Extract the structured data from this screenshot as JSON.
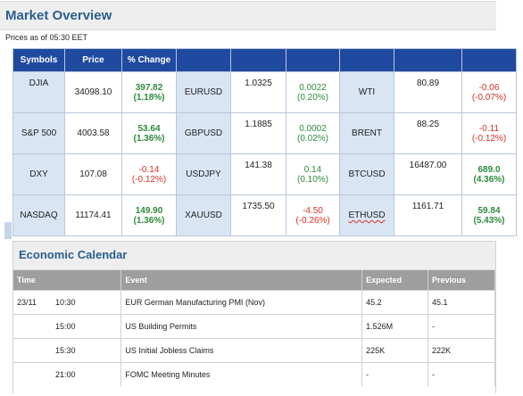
{
  "market_overview": {
    "title": "Market Overview",
    "as_of": "Prices as of 05:30 EET",
    "headers": [
      "Symbols",
      "Price",
      "% Change",
      "",
      "",
      "",
      "",
      "",
      ""
    ],
    "rows": [
      {
        "g1": {
          "symbol": "DJIA",
          "price": "34098.10",
          "change": "397.82",
          "pct": "(1.18%)"
        },
        "g2": {
          "symbol": "EURUSD",
          "price": "1.0325",
          "change": "0.0022",
          "pct": "(0.20%)"
        },
        "g3": {
          "symbol": "WTI",
          "price": "80.89",
          "change": "-0.06",
          "pct": "(-0.07%)"
        }
      },
      {
        "g1": {
          "symbol": "S&P 500",
          "price": "4003.58",
          "change": "53.64",
          "pct": "(1.36%)"
        },
        "g2": {
          "symbol": "GBPUSD",
          "price": "1.1885",
          "change": "0.0002",
          "pct": "(0.02%)"
        },
        "g3": {
          "symbol": "BRENT",
          "price": "88.25",
          "change": "-0.11",
          "pct": "(-0.12%)"
        }
      },
      {
        "g1": {
          "symbol": "DXY",
          "price": "107.08",
          "change": "-0.14",
          "pct": "(-0.12%)"
        },
        "g2": {
          "symbol": "USDJPY",
          "price": "141.38",
          "change": "0.14",
          "pct": "(0.10%)"
        },
        "g3": {
          "symbol": "BTCUSD",
          "price": "16487.00",
          "change": "689.0",
          "pct": "(4.36%)"
        }
      },
      {
        "g1": {
          "symbol": "NASDAQ",
          "price": "11174.41",
          "change": "149.90",
          "pct": "(1.36%)"
        },
        "g2": {
          "symbol": "XAUUSD",
          "price": "1735.50",
          "change": "-4.50",
          "pct": "(-0.26%)"
        },
        "g3": {
          "symbol": "ETHUSD",
          "price": "1161.71",
          "change": "59.84",
          "pct": "(5.43%)"
        }
      }
    ]
  },
  "economic_calendar": {
    "title": "Economic Calendar",
    "headers": {
      "time": "Time",
      "event": "Event",
      "expected": "Expected",
      "previous": "Previous"
    },
    "rows": [
      {
        "date": "23/11",
        "time": "10:30",
        "event": "EUR German Manufacturing PMI (Nov)",
        "expected": "45.2",
        "previous": "45.1"
      },
      {
        "date": "",
        "time": "15:00",
        "event": "US Building Permits",
        "expected": "1.526M",
        "previous": "-"
      },
      {
        "date": "",
        "time": "15:30",
        "event": "US Initial Jobless Claims",
        "expected": "225K",
        "previous": "222K"
      },
      {
        "date": "",
        "time": "21:00",
        "event": "FOMC Meeting Minutes",
        "expected": "-",
        "previous": "-"
      }
    ]
  },
  "colors": {
    "header_blue": "#1f4aa0",
    "symbol_cell": "#d9e5f3",
    "positive": "#2e8b3e",
    "negative": "#d93025",
    "title": "#2c5e8f",
    "calendar_header": "#9e9e9e"
  }
}
